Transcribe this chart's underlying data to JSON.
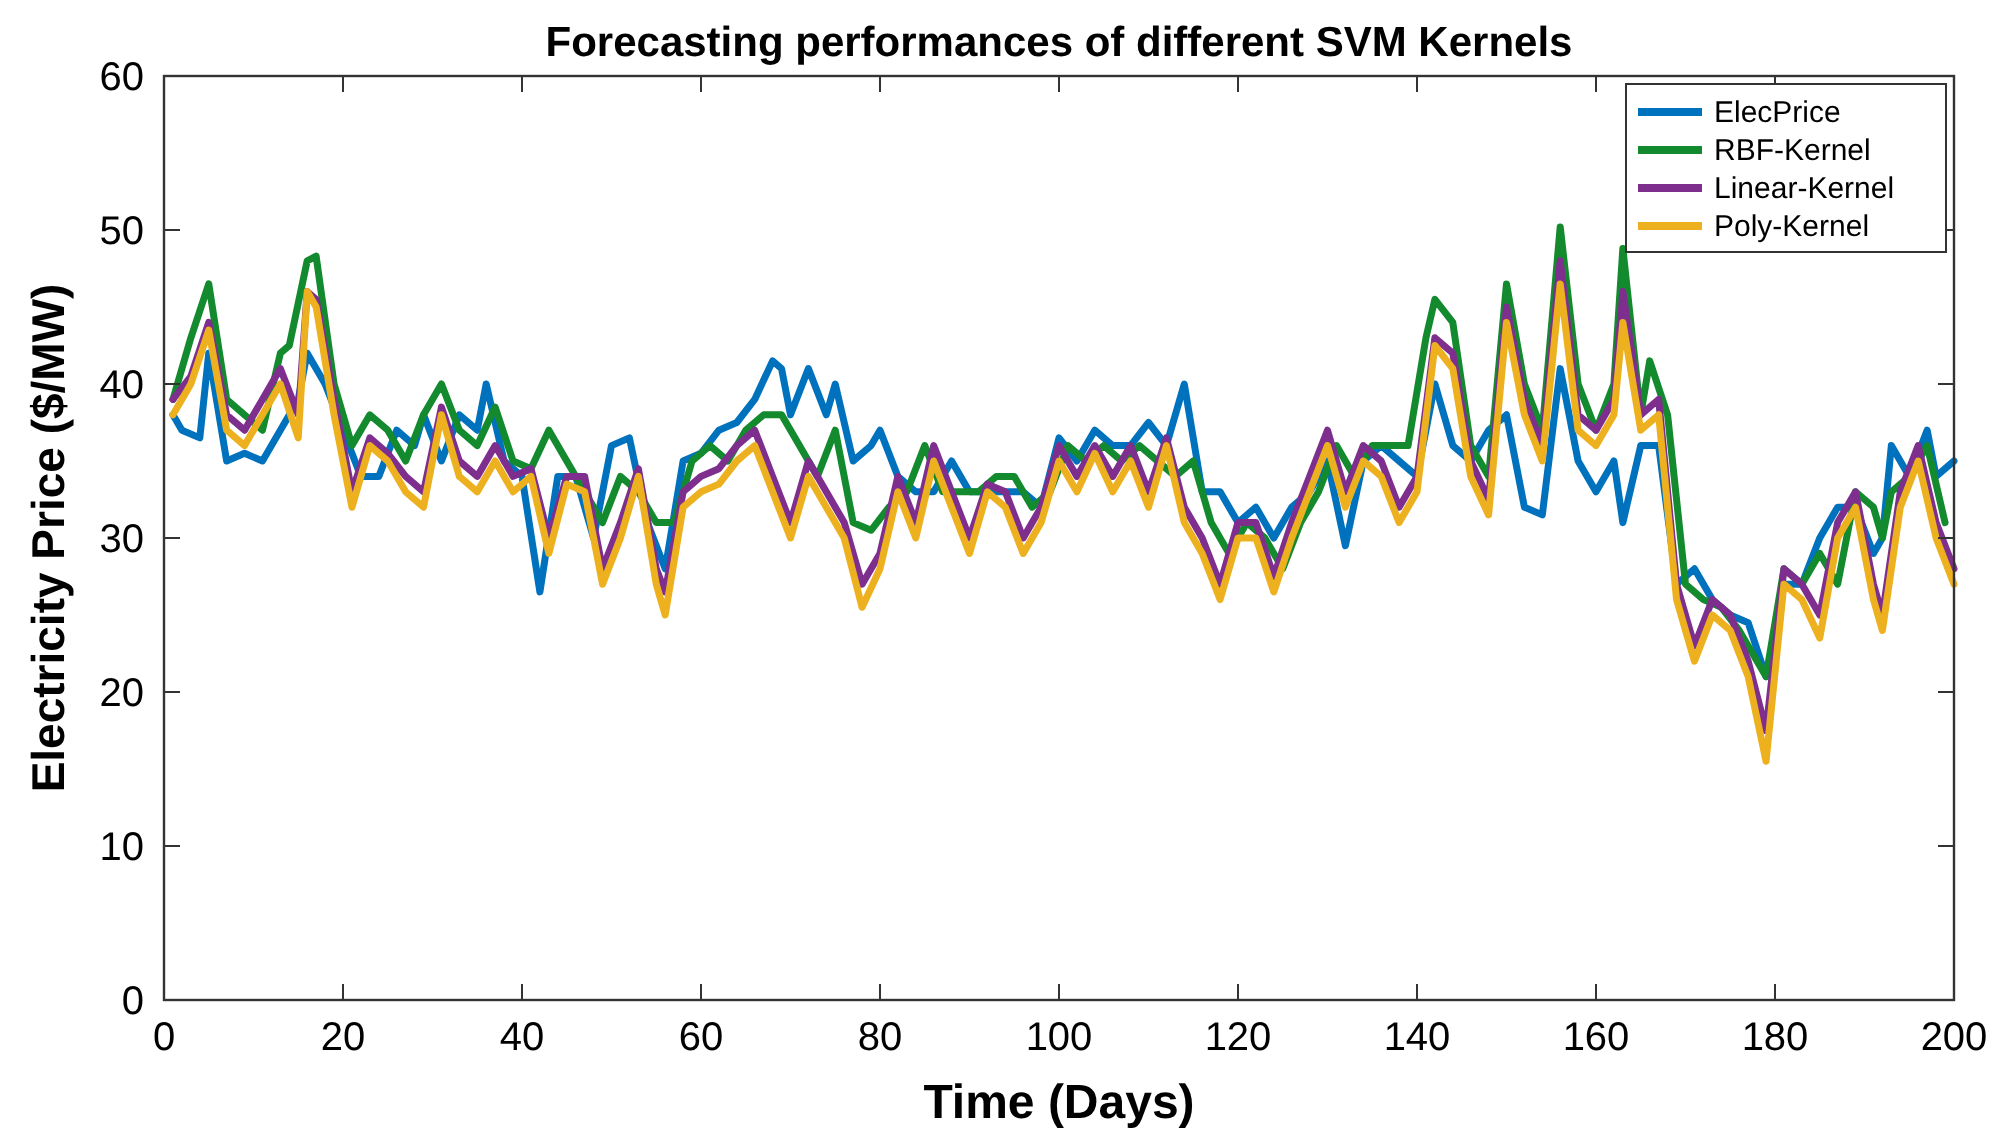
{
  "chart_data": {
    "type": "line",
    "title": "Forecasting performances of different SVM Kernels",
    "xlabel": "Time (Days)",
    "ylabel": "Electricity Price ($/MW)",
    "xlim": [
      0,
      200
    ],
    "ylim": [
      0,
      60
    ],
    "xticks": [
      0,
      20,
      40,
      60,
      80,
      100,
      120,
      140,
      160,
      180,
      200
    ],
    "yticks": [
      0,
      10,
      20,
      30,
      40,
      50,
      60
    ],
    "grid": false,
    "legend": "top right",
    "line_style": "solid",
    "series": [
      {
        "name": "ElecPrice",
        "color": "#0072bd",
        "x": [
          1,
          2,
          4,
          5,
          7,
          9,
          11,
          13,
          15,
          16,
          18,
          20,
          22,
          24,
          26,
          28,
          29,
          31,
          33,
          35,
          36,
          38,
          40,
          42,
          44,
          46,
          48,
          50,
          52,
          54,
          56,
          58,
          60,
          62,
          64,
          66,
          68,
          69,
          70,
          72,
          74,
          75,
          77,
          79,
          80,
          82,
          84,
          86,
          88,
          90,
          92,
          94,
          96,
          98,
          100,
          102,
          104,
          106,
          108,
          110,
          112,
          114,
          116,
          118,
          120,
          122,
          124,
          126,
          128,
          130,
          132,
          134,
          136,
          138,
          140,
          142,
          144,
          146,
          148,
          150,
          152,
          154,
          156,
          158,
          160,
          162,
          163,
          165,
          167,
          169,
          171,
          173,
          175,
          177,
          179,
          181,
          183,
          185,
          187,
          189,
          191,
          192,
          193,
          195,
          197,
          198,
          200
        ],
        "values": [
          38,
          37,
          36.5,
          42,
          35,
          35.5,
          35,
          37,
          39,
          42,
          40,
          37,
          34,
          34,
          37,
          36,
          38,
          35,
          38,
          37,
          40,
          35,
          34,
          26.5,
          34,
          34,
          30,
          36,
          36.5,
          31,
          28,
          35,
          35.5,
          37,
          37.5,
          39,
          41.5,
          41,
          38,
          41,
          38,
          40,
          35,
          36,
          37,
          34,
          33,
          33,
          35,
          33,
          33,
          33,
          33,
          32,
          36.5,
          35,
          37,
          36,
          36,
          37.5,
          36,
          40,
          33,
          33,
          31,
          32,
          30,
          32,
          33,
          35,
          29.5,
          35,
          36,
          35,
          34,
          40,
          36,
          35,
          37,
          38,
          32,
          31.5,
          41,
          35,
          33,
          35,
          31,
          36,
          36,
          27,
          28,
          26,
          25,
          24.5,
          21,
          27,
          27,
          30,
          32,
          32,
          29,
          30,
          36,
          34,
          37,
          34,
          35
        ]
      },
      {
        "name": "RBF-Kernel",
        "color": "#138a2e",
        "x": [
          1,
          3,
          5,
          7,
          9,
          11,
          13,
          14,
          16,
          17,
          19,
          21,
          23,
          25,
          27,
          29,
          31,
          33,
          35,
          37,
          39,
          41,
          43,
          45,
          47,
          49,
          51,
          53,
          55,
          57,
          59,
          61,
          63,
          65,
          67,
          69,
          71,
          73,
          75,
          77,
          79,
          81,
          83,
          85,
          87,
          89,
          91,
          93,
          95,
          97,
          99,
          101,
          103,
          105,
          107,
          109,
          111,
          113,
          115,
          117,
          119,
          121,
          123,
          125,
          127,
          129,
          131,
          133,
          135,
          137,
          139,
          141,
          142,
          144,
          146,
          148,
          150,
          152,
          154,
          156,
          158,
          160,
          162,
          163,
          165,
          166,
          168,
          170,
          172,
          174,
          176,
          178,
          179,
          181,
          183,
          185,
          187,
          189,
          191,
          192,
          193,
          195,
          197,
          199
        ],
        "values": [
          39,
          43,
          46.5,
          39,
          38,
          37,
          42,
          42.5,
          48,
          48.3,
          40,
          36,
          38,
          37,
          35,
          38,
          40,
          37,
          36,
          38.5,
          35,
          34.5,
          37,
          35,
          33,
          31,
          34,
          33,
          31,
          31,
          35,
          36,
          35,
          37,
          38,
          38,
          36,
          34,
          37,
          31,
          30.5,
          32,
          33,
          36,
          33,
          33,
          33,
          34,
          34,
          32,
          33,
          36,
          35,
          36,
          35,
          36,
          35,
          34,
          35,
          31,
          29,
          31,
          30,
          28,
          31,
          33,
          36,
          34,
          36,
          36,
          36,
          43,
          45.5,
          44,
          36,
          34,
          46.5,
          40,
          37,
          50.2,
          40,
          37,
          40,
          48.8,
          38,
          41.5,
          38,
          27,
          26,
          25.5,
          24,
          22,
          21,
          28,
          27,
          29,
          27,
          33,
          32,
          30,
          33,
          34,
          36,
          31
        ]
      },
      {
        "name": "Linear-Kernel",
        "color": "#7e2f8e",
        "x": [
          1,
          3,
          5,
          7,
          9,
          11,
          13,
          15,
          16,
          17,
          19,
          21,
          23,
          25,
          27,
          29,
          31,
          33,
          35,
          37,
          39,
          41,
          43,
          45,
          47,
          49,
          51,
          53,
          55,
          56,
          58,
          60,
          62,
          64,
          66,
          68,
          70,
          72,
          74,
          76,
          78,
          80,
          82,
          84,
          86,
          88,
          90,
          92,
          94,
          96,
          98,
          100,
          102,
          104,
          106,
          108,
          110,
          112,
          114,
          116,
          118,
          120,
          122,
          124,
          126,
          128,
          130,
          132,
          134,
          136,
          138,
          140,
          142,
          144,
          146,
          148,
          150,
          152,
          154,
          156,
          158,
          160,
          162,
          163,
          165,
          167,
          169,
          171,
          173,
          175,
          177,
          179,
          181,
          183,
          185,
          187,
          189,
          191,
          192,
          194,
          196,
          198,
          200
        ],
        "values": [
          39,
          40.5,
          44,
          38,
          37,
          39,
          41,
          38,
          46,
          45.5,
          39,
          33,
          36.5,
          35.5,
          34,
          33,
          38.5,
          35,
          34,
          36,
          34,
          34.5,
          30,
          34,
          34,
          28,
          31,
          34.5,
          28,
          26.5,
          33,
          34,
          34.5,
          36,
          37,
          34,
          31,
          35,
          33,
          31,
          27,
          29,
          34,
          31,
          36,
          33,
          30,
          33.5,
          33,
          30,
          32,
          36,
          34,
          36,
          34,
          36,
          33,
          36.5,
          32,
          30,
          27,
          31,
          31,
          27.5,
          31,
          34,
          37,
          33,
          36,
          35,
          32,
          34,
          43,
          42,
          35,
          32.5,
          45,
          39,
          36,
          48,
          38,
          37,
          39,
          46,
          38,
          39,
          27,
          23,
          26,
          25,
          22,
          17.5,
          28,
          27,
          25,
          31,
          33,
          27,
          25,
          33,
          36,
          31,
          28
        ]
      },
      {
        "name": "Poly-Kernel",
        "color": "#edb120",
        "x": [
          1,
          3,
          5,
          7,
          9,
          11,
          13,
          15,
          16,
          17,
          19,
          21,
          23,
          25,
          27,
          29,
          31,
          33,
          35,
          37,
          39,
          41,
          43,
          45,
          47,
          49,
          51,
          53,
          55,
          56,
          58,
          60,
          62,
          64,
          66,
          68,
          70,
          72,
          74,
          76,
          78,
          80,
          82,
          84,
          86,
          88,
          90,
          92,
          94,
          96,
          98,
          100,
          102,
          104,
          106,
          108,
          110,
          112,
          114,
          116,
          118,
          120,
          122,
          124,
          126,
          128,
          130,
          132,
          134,
          136,
          138,
          140,
          142,
          144,
          146,
          148,
          150,
          152,
          154,
          156,
          158,
          160,
          162,
          163,
          165,
          167,
          169,
          171,
          173,
          175,
          177,
          179,
          181,
          183,
          185,
          187,
          189,
          191,
          192,
          194,
          196,
          198,
          200
        ],
        "values": [
          38,
          40,
          43.5,
          37,
          36,
          38,
          40,
          36.5,
          46,
          45,
          38,
          32,
          36,
          35,
          33,
          32,
          38,
          34,
          33,
          35,
          33,
          34,
          29,
          33.5,
          33,
          27,
          30,
          34,
          27,
          25,
          32,
          33,
          33.5,
          35,
          36,
          33,
          30,
          34,
          32,
          30,
          25.5,
          28,
          33,
          30,
          35,
          32,
          29,
          33,
          32,
          29,
          31,
          35,
          33,
          35.5,
          33,
          35,
          32,
          36,
          31,
          29,
          26,
          30,
          30,
          26.5,
          30,
          33,
          36,
          32,
          35,
          34,
          31,
          33,
          42.5,
          41,
          34,
          31.5,
          44,
          38,
          35,
          46.5,
          37,
          36,
          38,
          44,
          37,
          38,
          26,
          22,
          25,
          24,
          21,
          15.5,
          27,
          26,
          23.5,
          30,
          32,
          26,
          24,
          32,
          35,
          30,
          27
        ]
      }
    ]
  }
}
